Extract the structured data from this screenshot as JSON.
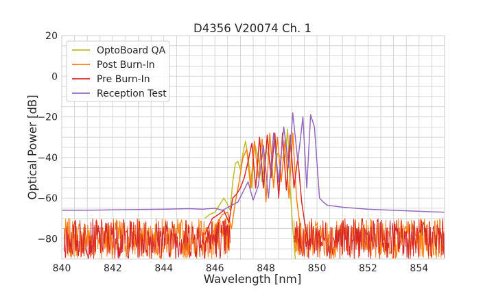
{
  "chart_data": {
    "type": "line",
    "title": "D4356 V20074 Ch. 1",
    "xlabel": "Wavelength [nm]",
    "ylabel": "Optical Power [dB]",
    "xlim": [
      840,
      855
    ],
    "ylim": [
      -90,
      20
    ],
    "xticks": [
      840,
      842,
      844,
      846,
      848,
      850,
      852,
      854
    ],
    "yticks": [
      20,
      0,
      -20,
      -40,
      -60,
      -80
    ],
    "grid": true,
    "minor_grid": true,
    "legend_position": "top-left",
    "noise_floor": {
      "x_start": 840.1,
      "x_end": 855.0,
      "mean": -78,
      "min": -90,
      "max": -70
    },
    "series": [
      {
        "name": "OptoBoard QA",
        "color": "#bcbd22",
        "x": [
          845.6,
          845.8,
          846.0,
          846.2,
          846.35,
          846.45,
          846.6,
          846.7,
          846.8,
          846.9,
          847.0,
          847.1,
          847.2,
          847.3,
          847.45,
          847.55,
          847.7,
          847.85,
          848.0,
          848.15,
          848.3,
          848.45,
          848.6,
          848.75,
          848.85,
          848.95,
          849.05,
          849.15
        ],
        "y": [
          -70,
          -68,
          -67,
          -63,
          -60,
          -62,
          -66,
          -52,
          -43,
          -42,
          -46,
          -38,
          -32,
          -40,
          -55,
          -33,
          -40,
          -52,
          -36,
          -42,
          -53,
          -38,
          -40,
          -40,
          -26,
          -55,
          -75,
          -90
        ]
      },
      {
        "name": "Post Burn-In",
        "color": "#ff7f0e",
        "x": [
          845.9,
          846.1,
          846.3,
          846.5,
          846.65,
          846.8,
          846.95,
          847.1,
          847.25,
          847.4,
          847.55,
          847.7,
          847.85,
          848.0,
          848.15,
          848.3,
          848.45,
          848.6,
          848.75,
          848.9,
          849.05,
          849.2,
          849.35,
          849.45
        ],
        "y": [
          -78,
          -72,
          -68,
          -67,
          -75,
          -62,
          -52,
          -40,
          -36,
          -55,
          -32,
          -50,
          -31,
          -62,
          -28,
          -55,
          -30,
          -52,
          -31,
          -60,
          -28,
          -60,
          -75,
          -88
        ]
      },
      {
        "name": "Pre Burn-In",
        "color": "#d62728",
        "x": [
          845.6,
          845.9,
          846.15,
          846.35,
          846.55,
          846.7,
          846.85,
          847.0,
          847.15,
          847.3,
          847.45,
          847.6,
          847.75,
          847.9,
          848.05,
          848.2,
          848.35,
          848.5,
          848.65,
          848.8,
          848.95,
          849.1,
          849.25,
          849.4,
          849.55,
          849.7
        ],
        "y": [
          -78,
          -70,
          -68,
          -66,
          -72,
          -60,
          -58,
          -55,
          -50,
          -42,
          -33,
          -55,
          -30,
          -55,
          -29,
          -50,
          -28,
          -60,
          -28,
          -56,
          -29,
          -55,
          -40,
          -62,
          -75,
          -85
        ]
      },
      {
        "name": "Reception Test",
        "color": "#9467bd",
        "x": [
          840.0,
          841.0,
          842.0,
          843.0,
          844.0,
          845.0,
          845.5,
          846.0,
          846.3,
          846.6,
          846.9,
          847.1,
          847.3,
          847.5,
          847.7,
          847.9,
          848.1,
          848.3,
          848.5,
          848.7,
          848.9,
          849.05,
          849.25,
          849.45,
          849.6,
          849.75,
          849.9,
          850.1,
          850.25,
          850.4,
          851.0,
          852.0,
          853.0,
          854.0,
          855.0
        ],
        "y": [
          -66,
          -66,
          -65.8,
          -65.6,
          -65.5,
          -65.2,
          -65.5,
          -65,
          -66,
          -64,
          -62,
          -57,
          -52,
          -61,
          -54,
          -34,
          -60,
          -28,
          -52,
          -25,
          -45,
          -18,
          -42,
          -20,
          -55,
          -19,
          -25,
          -60,
          -62,
          -63.5,
          -64.5,
          -65.5,
          -66,
          -66.5,
          -67
        ]
      }
    ]
  }
}
